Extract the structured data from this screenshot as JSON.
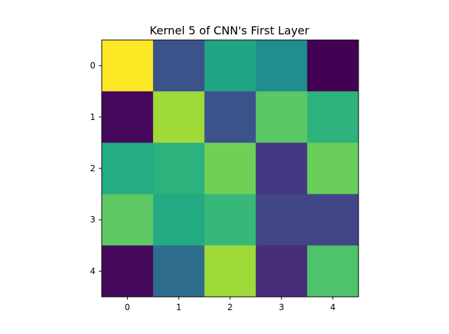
{
  "chart_data": {
    "type": "heatmap",
    "title": "Kernel 5 of CNN's First Layer",
    "xlabel": "",
    "ylabel": "",
    "x_ticks": [
      "0",
      "1",
      "2",
      "3",
      "4"
    ],
    "y_ticks": [
      "0",
      "1",
      "2",
      "3",
      "4"
    ],
    "colormap": "viridis",
    "grid": false,
    "colors": [
      [
        "#fde725",
        "#3b528b",
        "#21a585",
        "#1f8e8c",
        "#440154"
      ],
      [
        "#46085c",
        "#a0da39",
        "#3b528b",
        "#5ac864",
        "#2eb37c"
      ],
      [
        "#25ac82",
        "#2db27d",
        "#70cf57",
        "#453781",
        "#69cd5b"
      ],
      [
        "#5ec962",
        "#24aa83",
        "#37b878",
        "#404688",
        "#404688"
      ],
      [
        "#460a5d",
        "#2e6d8e",
        "#a0da39",
        "#472c7a",
        "#4ec36b"
      ]
    ],
    "values_normalized": [
      [
        1.0,
        0.27,
        0.62,
        0.53,
        0.0
      ],
      [
        0.02,
        0.88,
        0.27,
        0.75,
        0.68
      ],
      [
        0.65,
        0.67,
        0.8,
        0.17,
        0.78
      ],
      [
        0.76,
        0.64,
        0.7,
        0.22,
        0.22
      ],
      [
        0.03,
        0.4,
        0.88,
        0.12,
        0.73
      ]
    ]
  }
}
